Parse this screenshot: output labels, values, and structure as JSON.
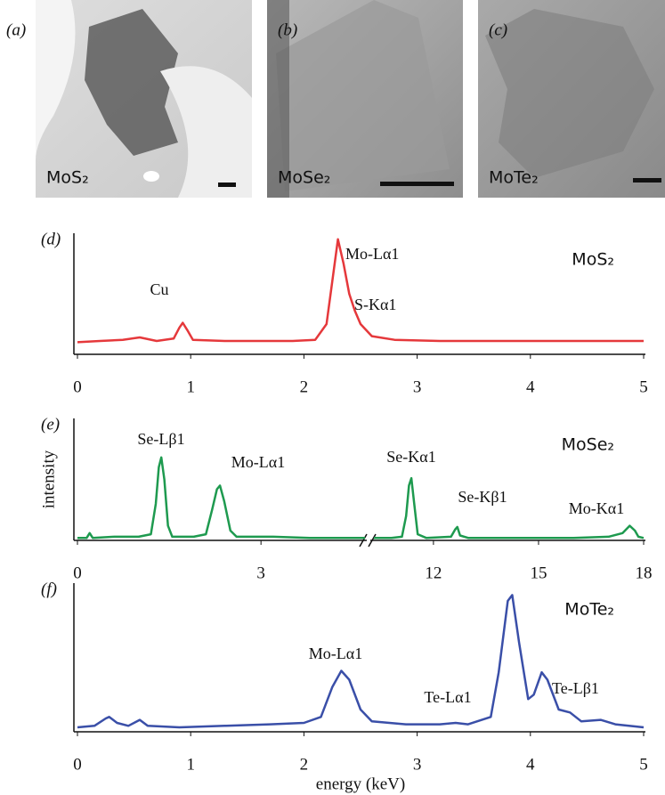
{
  "images": [
    {
      "label": "(a)",
      "caption": "MoS₂"
    },
    {
      "label": "(b)",
      "caption": "MoSe₂"
    },
    {
      "label": "(c)",
      "caption": "MoTe₂"
    }
  ],
  "chart_data": [
    {
      "type": "line",
      "panel": "(d)",
      "xlim": [
        0,
        5
      ],
      "xticks": [
        0,
        1,
        2,
        3,
        4,
        5
      ],
      "ylim": [
        0,
        1
      ],
      "annotations": [
        "Cu",
        "Mo-Lα1",
        "S-Kα1"
      ],
      "x": [
        0.0,
        0.2,
        0.4,
        0.55,
        0.7,
        0.85,
        0.9,
        0.93,
        0.97,
        1.02,
        1.3,
        1.6,
        1.9,
        2.1,
        2.2,
        2.25,
        2.3,
        2.35,
        2.4,
        2.45,
        2.5,
        2.6,
        2.8,
        3.2,
        3.6,
        4.0,
        4.4,
        4.8,
        5.0
      ],
      "series": [
        {
          "name": "MoS₂",
          "color": "#e5383b",
          "values": [
            0.1,
            0.11,
            0.12,
            0.14,
            0.11,
            0.13,
            0.22,
            0.26,
            0.2,
            0.12,
            0.11,
            0.11,
            0.11,
            0.12,
            0.25,
            0.6,
            0.95,
            0.75,
            0.5,
            0.36,
            0.25,
            0.15,
            0.12,
            0.11,
            0.11,
            0.11,
            0.11,
            0.11,
            0.11
          ]
        }
      ]
    },
    {
      "type": "line",
      "panel": "(e)",
      "ylabel": "intensity",
      "x_segments": [
        [
          0,
          4.7
        ],
        [
          10.3,
          18
        ]
      ],
      "xticks": [
        0,
        3,
        12,
        15,
        18
      ],
      "ylim": [
        0,
        1
      ],
      "annotations": [
        "Se-Lβ1",
        "Mo-Lα1",
        "Se-Kα1",
        "Se-Kβ1",
        "Mo-Kα1"
      ],
      "x": [
        0,
        0.15,
        0.2,
        0.25,
        0.6,
        1.0,
        1.2,
        1.28,
        1.33,
        1.37,
        1.42,
        1.48,
        1.55,
        1.9,
        2.1,
        2.2,
        2.28,
        2.33,
        2.4,
        2.5,
        2.6,
        3.2,
        3.8,
        4.4,
        4.7,
        10.3,
        10.8,
        11.1,
        11.22,
        11.3,
        11.37,
        11.45,
        11.55,
        11.8,
        12.5,
        12.62,
        12.68,
        12.76,
        13.0,
        14.0,
        15.0,
        16.0,
        17.0,
        17.4,
        17.6,
        17.75,
        17.85,
        18
      ],
      "series": [
        {
          "name": "MoSe₂",
          "color": "#1e9a4f",
          "values": [
            0.02,
            0.02,
            0.06,
            0.02,
            0.03,
            0.03,
            0.05,
            0.3,
            0.6,
            0.68,
            0.5,
            0.12,
            0.03,
            0.03,
            0.05,
            0.25,
            0.42,
            0.45,
            0.32,
            0.08,
            0.03,
            0.03,
            0.02,
            0.02,
            0.02,
            0.02,
            0.02,
            0.03,
            0.2,
            0.45,
            0.51,
            0.3,
            0.05,
            0.02,
            0.03,
            0.09,
            0.11,
            0.04,
            0.02,
            0.02,
            0.02,
            0.02,
            0.03,
            0.06,
            0.12,
            0.08,
            0.03,
            0.02
          ]
        }
      ]
    },
    {
      "type": "line",
      "panel": "(f)",
      "xlabel": "energy (keV)",
      "xlim": [
        0,
        5
      ],
      "xticks": [
        0,
        1,
        2,
        3,
        4,
        5
      ],
      "ylim": [
        0,
        1
      ],
      "annotations": [
        "Mo-Lα1",
        "Te-Lα1",
        "Te-Lβ1"
      ],
      "x": [
        0,
        0.15,
        0.25,
        0.28,
        0.35,
        0.45,
        0.55,
        0.62,
        0.9,
        1.3,
        1.7,
        2.0,
        2.15,
        2.25,
        2.33,
        2.4,
        2.5,
        2.6,
        2.9,
        3.2,
        3.34,
        3.45,
        3.65,
        3.72,
        3.8,
        3.84,
        3.9,
        3.98,
        4.03,
        4.1,
        4.15,
        4.25,
        4.35,
        4.45,
        4.62,
        4.75,
        5.0
      ],
      "series": [
        {
          "name": "MoTe₂",
          "color": "#3a4fa8",
          "values": [
            0.03,
            0.04,
            0.09,
            0.1,
            0.06,
            0.04,
            0.08,
            0.04,
            0.03,
            0.04,
            0.05,
            0.06,
            0.1,
            0.3,
            0.41,
            0.35,
            0.15,
            0.07,
            0.05,
            0.05,
            0.06,
            0.05,
            0.1,
            0.4,
            0.88,
            0.92,
            0.6,
            0.22,
            0.25,
            0.4,
            0.35,
            0.15,
            0.13,
            0.07,
            0.08,
            0.05,
            0.03
          ]
        }
      ]
    }
  ]
}
